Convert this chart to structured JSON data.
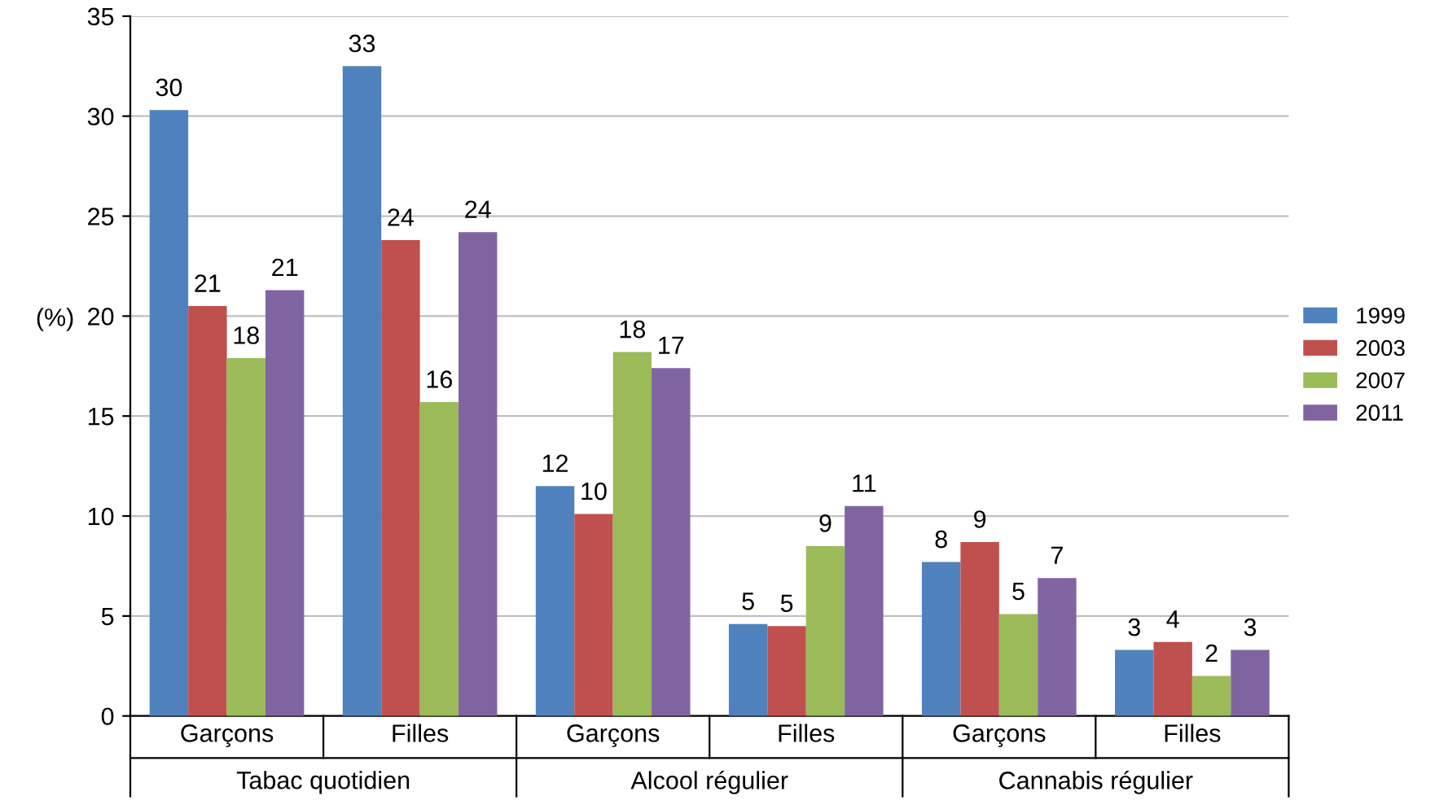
{
  "chart_data": {
    "type": "bar",
    "ylabel": "(%)",
    "categories": [
      "Garçons",
      "Filles",
      "Garçons",
      "Filles",
      "Garçons",
      "Filles"
    ],
    "annotations": [
      "Tabac quotidien",
      "Alcool régulier",
      "Cannabis régulier"
    ],
    "series": [
      {
        "name": "1999",
        "color": "#4f81bd",
        "values": [
          30.3,
          32.5,
          11.5,
          4.6,
          7.7,
          3.3
        ],
        "value_labels": [
          "30",
          "33",
          "12",
          "5",
          "8",
          "3"
        ]
      },
      {
        "name": "2003",
        "color": "#c0504d",
        "values": [
          20.5,
          23.8,
          10.1,
          4.5,
          8.7,
          3.7
        ],
        "value_labels": [
          "21",
          "24",
          "10",
          "5",
          "9",
          "4"
        ]
      },
      {
        "name": "2007",
        "color": "#9bbb59",
        "values": [
          17.9,
          15.7,
          18.2,
          8.5,
          5.1,
          2.0
        ],
        "value_labels": [
          "18",
          "16",
          "18",
          "9",
          "5",
          "2"
        ]
      },
      {
        "name": "2011",
        "color": "#8064a2",
        "values": [
          21.3,
          24.2,
          17.4,
          10.5,
          6.9,
          3.3
        ],
        "value_labels": [
          "21",
          "24",
          "17",
          "11",
          "7",
          "3"
        ]
      }
    ],
    "ylim": [
      0,
      35
    ],
    "yticks": [
      0,
      5,
      10,
      15,
      20,
      25,
      30,
      35
    ],
    "grid": "y",
    "legend": "right"
  }
}
